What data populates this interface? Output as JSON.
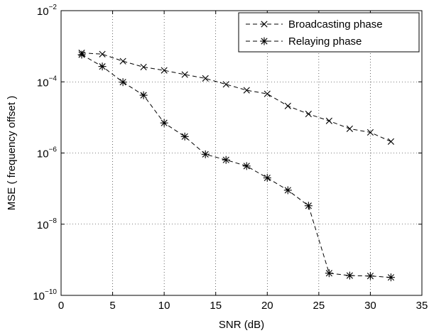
{
  "chart_data": {
    "type": "line",
    "title": "",
    "xlabel": "SNR (dB)",
    "ylabel": "MSE ( frequency offset )",
    "xlim": [
      0,
      35
    ],
    "ylim": [
      1e-10,
      0.01
    ],
    "yscale": "log",
    "grid": true,
    "legend_position": "top-right",
    "x_ticks": [
      "0",
      "5",
      "10",
      "15",
      "20",
      "25",
      "30",
      "35"
    ],
    "x_tick_values": [
      0,
      5,
      10,
      15,
      20,
      25,
      30,
      35
    ],
    "y_ticks": [
      {
        "base": "10",
        "exp": "−10",
        "value": 1e-10
      },
      {
        "base": "10",
        "exp": "−8",
        "value": 1e-08
      },
      {
        "base": "10",
        "exp": "−6",
        "value": 1e-06
      },
      {
        "base": "10",
        "exp": "−4",
        "value": 0.0001
      },
      {
        "base": "10",
        "exp": "−2",
        "value": 0.01
      }
    ],
    "series": [
      {
        "name": "Broadcasting phase",
        "marker": "x",
        "line": "dashed",
        "color": "#000000",
        "x": [
          2,
          4,
          6,
          8,
          10,
          12,
          14,
          16,
          18,
          20,
          22,
          24,
          26,
          28,
          30,
          32
        ],
        "y": [
          0.00065,
          0.0006,
          0.00038,
          0.00026,
          0.00021,
          0.00016,
          0.000125,
          8.5e-05,
          5.8e-05,
          4.6e-05,
          2.1e-05,
          1.25e-05,
          8e-06,
          4.8e-06,
          3.8e-06,
          2.1e-06
        ]
      },
      {
        "name": "Relaying phase",
        "marker": "*",
        "line": "dashed",
        "color": "#000000",
        "x": [
          2,
          4,
          6,
          8,
          10,
          12,
          14,
          16,
          18,
          20,
          22,
          24,
          26,
          28,
          30,
          32
        ],
        "y": [
          0.00058,
          0.00027,
          9.8e-05,
          4.2e-05,
          7e-06,
          2.9e-06,
          9.2e-07,
          6.4e-07,
          4.3e-07,
          2e-07,
          9e-08,
          3.3e-08,
          4.2e-10,
          3.6e-10,
          3.5e-10,
          3.2e-10
        ]
      }
    ]
  }
}
